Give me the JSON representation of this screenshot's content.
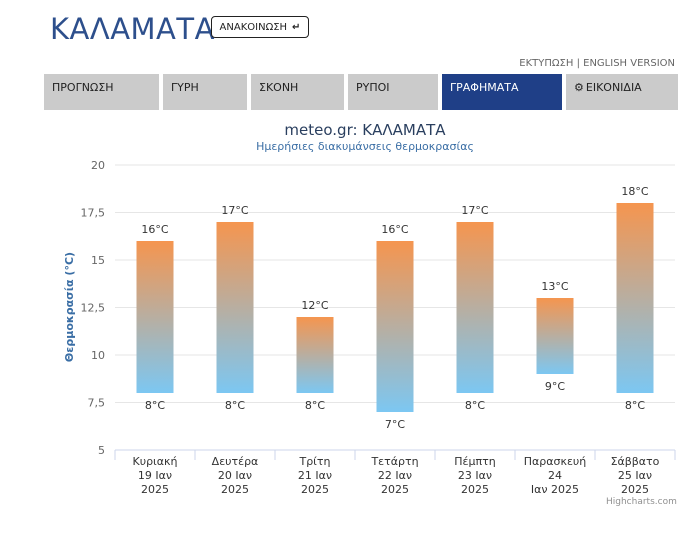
{
  "header": {
    "city": "ΚΑΛΑΜΑΤΑ",
    "announcement_label": "ΑΝΑΚΟΙΝΩΣΗ",
    "print_link": "ΕΚΤΥΠΩΣΗ",
    "separator": "|",
    "english_link": "ENGLISH VERSION"
  },
  "tabs": [
    {
      "label": "ΠΡΟΓΝΩΣΗ",
      "active": false
    },
    {
      "label": "ΓΥΡΗ",
      "active": false
    },
    {
      "label": "ΣΚΟΝΗ",
      "active": false
    },
    {
      "label": "ΡΥΠΟΙ",
      "active": false
    },
    {
      "label": "ΓΡΑΦΗΜΑΤΑ",
      "active": true
    },
    {
      "label": "ΕΙΚΟΝΙΔΙΑ",
      "active": false,
      "icon": "gear-icon"
    }
  ],
  "chart_data": {
    "type": "bar",
    "title": "meteo.gr: ΚΑΛΑΜΑΤΑ",
    "subtitle": "Ημερήσιες διακυμάνσεις θερμοκρασίας",
    "ylabel": "Θερμοκρασία (°C)",
    "ylim": [
      5,
      20
    ],
    "yticks": [
      "5",
      "7,5",
      "10",
      "12,5",
      "15",
      "17,5",
      "20"
    ],
    "categories": [
      [
        "Κυριακή",
        "19 Ιαν",
        "2025"
      ],
      [
        "Δευτέρα",
        "20 Ιαν",
        "2025"
      ],
      [
        "Τρίτη",
        "21 Ιαν",
        "2025"
      ],
      [
        "Τετάρτη",
        "22 Ιαν",
        "2025"
      ],
      [
        "Πέμπτη",
        "23 Ιαν",
        "2025"
      ],
      [
        "Παρασκευή",
        "24",
        "Ιαν 2025"
      ],
      [
        "Σάββατο",
        "25 Ιαν",
        "2025"
      ]
    ],
    "series": [
      {
        "low": [
          8,
          8,
          8,
          7,
          8,
          9,
          8
        ],
        "high": [
          16,
          17,
          12,
          16,
          17,
          13,
          18
        ]
      }
    ],
    "unit_suffix": "°C",
    "grid": true,
    "colors": {
      "top": "#f5954f",
      "bottom": "#7cc7f2",
      "grid": "#e6e6e6",
      "title": "#2a3f5f",
      "subtitle": "#3a6ea5",
      "ylabel": "#3a6ea5",
      "axis_text": "#666666"
    },
    "credits": "Highcharts.com"
  }
}
